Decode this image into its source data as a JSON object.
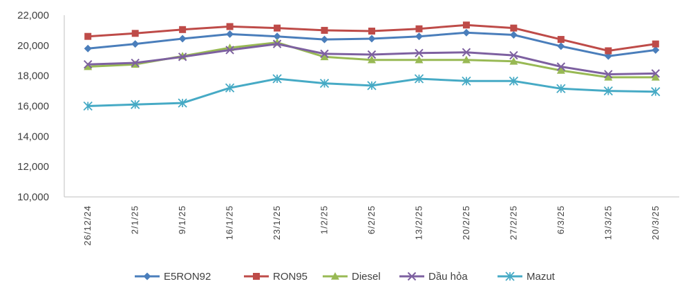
{
  "chart_data": {
    "type": "line",
    "title": "",
    "xlabel": "",
    "ylabel": "",
    "ylim": [
      10000,
      22000
    ],
    "ytick_step": 2000,
    "yticks": [
      "10,000",
      "12,000",
      "14,000",
      "16,000",
      "18,000",
      "20,000",
      "22,000"
    ],
    "grid": false,
    "legend_position": "bottom",
    "categories": [
      "26/12/24",
      "2/1/25",
      "9/1/25",
      "16/1/25",
      "23/1/25",
      "1/2/25",
      "6/2/25",
      "13/2/25",
      "20/2/25",
      "27/2/25",
      "6/3/25",
      "13/3/25",
      "20/3/25"
    ],
    "series": [
      {
        "name": "E5RON92",
        "color": "#4a7ebb",
        "marker": "diamond",
        "values": [
          19800,
          20100,
          20450,
          20750,
          20600,
          20400,
          20450,
          20600,
          20850,
          20700,
          19950,
          19300,
          19700
        ]
      },
      {
        "name": "RON95",
        "color": "#be4b48",
        "marker": "square",
        "values": [
          20600,
          20800,
          21050,
          21250,
          21150,
          21000,
          20950,
          21100,
          21350,
          21150,
          20400,
          19650,
          20100
        ]
      },
      {
        "name": "Diesel",
        "color": "#98b954",
        "marker": "triangle",
        "values": [
          18600,
          18750,
          19300,
          19850,
          20200,
          19250,
          19050,
          19050,
          19050,
          18950,
          18350,
          17900,
          17900
        ]
      },
      {
        "name": "Dầu hỏa",
        "color": "#7d60a0",
        "marker": "x",
        "values": [
          18750,
          18850,
          19250,
          19700,
          20100,
          19450,
          19400,
          19500,
          19550,
          19350,
          18600,
          18100,
          18150
        ]
      },
      {
        "name": "Mazut",
        "color": "#46aac5",
        "marker": "asterisk",
        "values": [
          16000,
          16100,
          16200,
          17200,
          17800,
          17500,
          17350,
          17800,
          17650,
          17650,
          17150,
          17000,
          16950
        ]
      }
    ]
  }
}
